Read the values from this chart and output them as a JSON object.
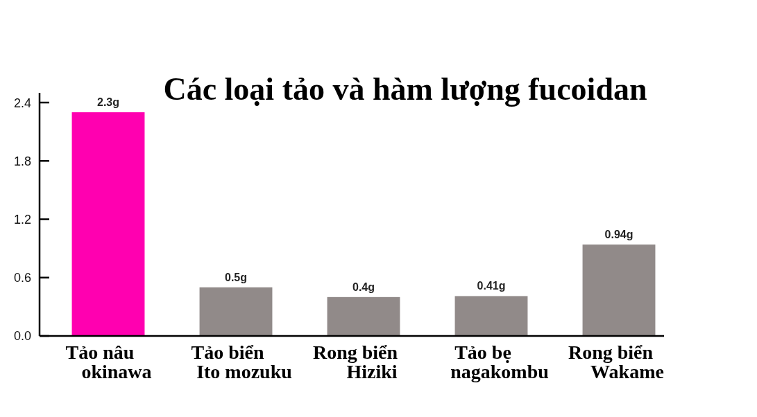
{
  "chart_data": {
    "type": "bar",
    "title": "Các loại tảo và hàm lượng fucoidan",
    "categories": [
      "Tảo nâu\nokinawa",
      "Tảo biển\nIto mozuku",
      "Rong biển\nHiziki",
      "Tảo bẹ\nnagakombu",
      "Rong biển\nWakame"
    ],
    "values": [
      2.3,
      0.5,
      0.4,
      0.41,
      0.94
    ],
    "colors": [
      "#ff00b0",
      "#918a89",
      "#918a89",
      "#918a89",
      "#918a89"
    ],
    "value_labels": [
      "2.3g",
      "0.5g",
      "0.4g",
      "0.41g",
      "0.94g"
    ],
    "ylim": [
      0,
      2.5
    ],
    "yticks": [
      {
        "value": 0,
        "label": "0.0"
      },
      0.6,
      1.2,
      1.8,
      2.4
    ]
  }
}
